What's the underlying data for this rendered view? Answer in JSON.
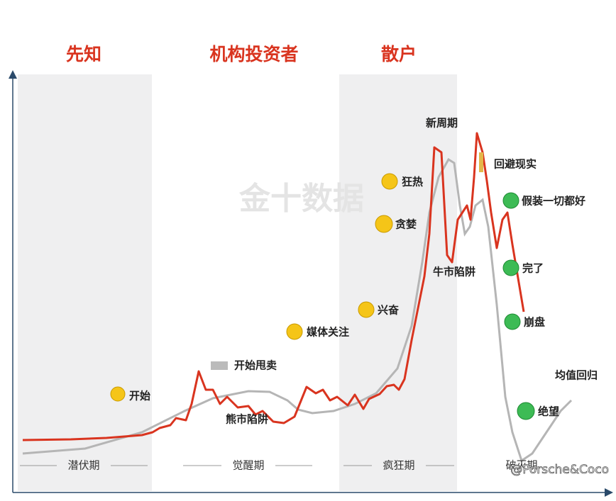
{
  "headers": [
    "先知",
    "机构投资者",
    "散户"
  ],
  "phases": [
    "潜伏期",
    "觉醒期",
    "疯狂期",
    "破灭期"
  ],
  "annotations": [
    "开始",
    "开始甩卖",
    "熊市陷阱",
    "媒体关注",
    "兴奋",
    "贪婪",
    "狂热",
    "新周期",
    "牛市陷阱",
    "回避现实",
    "假装一切都好",
    "完了",
    "崩盘",
    "均值回归",
    "绝望"
  ],
  "watermark": "金十数据",
  "credit": "@Porsche&Coco"
}
